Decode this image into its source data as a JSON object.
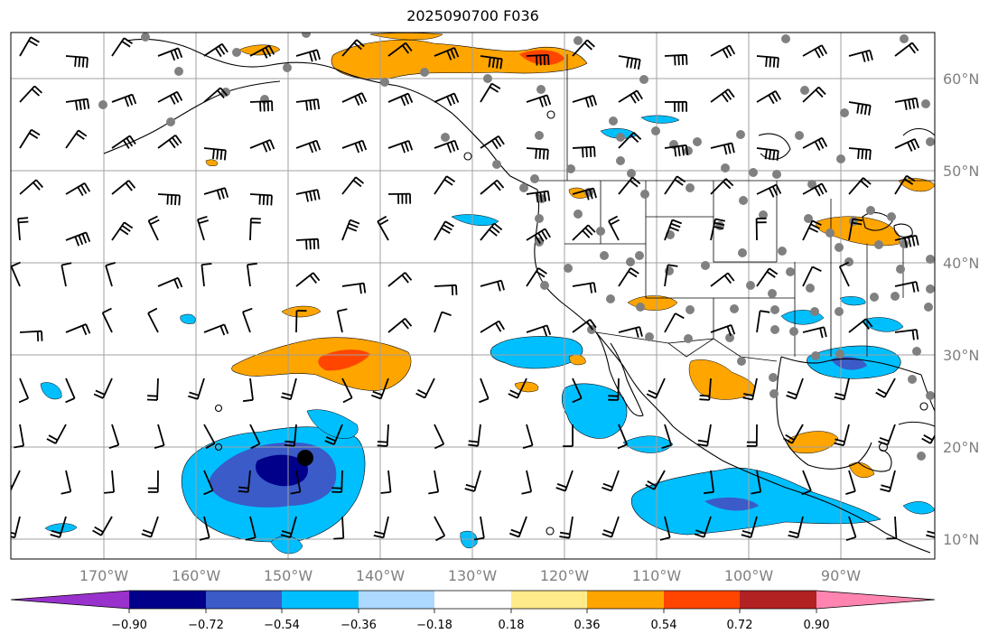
{
  "title": "2025090700 F036",
  "lon_ticks": [
    "170°W",
    "160°W",
    "150°W",
    "140°W",
    "130°W",
    "120°W",
    "110°W",
    "100°W",
    "90°W"
  ],
  "lat_ticks": [
    "60°N",
    "50°N",
    "40°N",
    "30°N",
    "20°N",
    "10°N"
  ],
  "colorbar": {
    "colors": [
      "#9932cc",
      "#00008b",
      "#3a5bc8",
      "#00bfff",
      "#add8ff",
      "#ffffff",
      "#ffeb8a",
      "#ffa500",
      "#ff4500",
      "#b22222",
      "#ff85b0"
    ],
    "labels": [
      "−0.90",
      "−0.72",
      "−0.54",
      "−0.36",
      "−0.18",
      "0.18",
      "0.36",
      "0.54",
      "0.72",
      "0.90"
    ]
  },
  "colors": {
    "land_outline": "#000000",
    "grid": "#a0a0a0",
    "station": "#808080"
  },
  "icons": [
    "wind-barb",
    "station-dot",
    "storm-center-marker"
  ]
}
